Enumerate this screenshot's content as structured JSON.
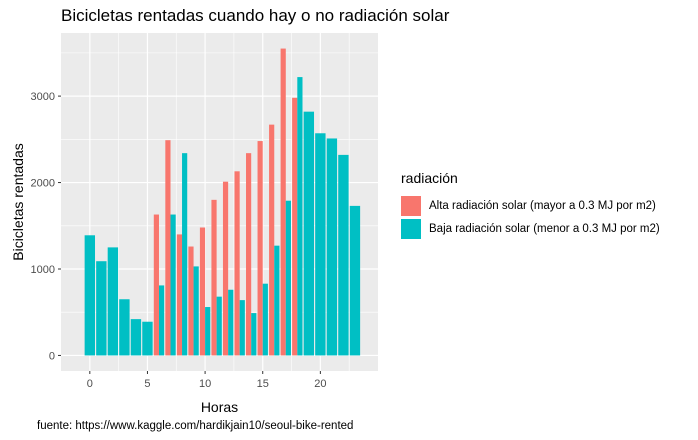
{
  "chart_data": {
    "type": "bar",
    "title": "Bicicletas rentadas cuando hay o no radiación solar",
    "xlabel": "Horas",
    "ylabel": "Bicicletas rentadas",
    "caption": "fuente: https://www.kaggle.com/hardikjain10/seoul-bike-rented",
    "xlim": [
      -2.5,
      25
    ],
    "ylim": [
      -180,
      3730
    ],
    "x_ticks": [
      0,
      5,
      10,
      15,
      20
    ],
    "y_ticks": [
      0,
      1000,
      2000,
      3000
    ],
    "grid": true,
    "legend": {
      "title": "radiación",
      "placement": "right"
    },
    "series": [
      {
        "name": "Alta radiación solar (mayor a 0.3 MJ por m2)",
        "color": "#F8766D",
        "points": [
          {
            "x": 6,
            "y": 1630
          },
          {
            "x": 7,
            "y": 2490
          },
          {
            "x": 8,
            "y": 1400
          },
          {
            "x": 9,
            "y": 1260
          },
          {
            "x": 10,
            "y": 1480
          },
          {
            "x": 11,
            "y": 1800
          },
          {
            "x": 12,
            "y": 2010
          },
          {
            "x": 13,
            "y": 2130
          },
          {
            "x": 14,
            "y": 2340
          },
          {
            "x": 15,
            "y": 2480
          },
          {
            "x": 16,
            "y": 2670
          },
          {
            "x": 17,
            "y": 3550
          },
          {
            "x": 18,
            "y": 2980
          }
        ]
      },
      {
        "name": "Baja radiación solar (menor a 0.3 MJ por m2)",
        "color": "#00BFC4",
        "points": [
          {
            "x": 0,
            "y": 1390
          },
          {
            "x": 1,
            "y": 1090
          },
          {
            "x": 2,
            "y": 1250
          },
          {
            "x": 3,
            "y": 650
          },
          {
            "x": 4,
            "y": 420
          },
          {
            "x": 5,
            "y": 390
          },
          {
            "x": 6,
            "y": 810
          },
          {
            "x": 7,
            "y": 1630
          },
          {
            "x": 8,
            "y": 2340
          },
          {
            "x": 9,
            "y": 1030
          },
          {
            "x": 10,
            "y": 560
          },
          {
            "x": 11,
            "y": 680
          },
          {
            "x": 12,
            "y": 760
          },
          {
            "x": 13,
            "y": 640
          },
          {
            "x": 14,
            "y": 490
          },
          {
            "x": 15,
            "y": 830
          },
          {
            "x": 16,
            "y": 1270
          },
          {
            "x": 17,
            "y": 1790
          },
          {
            "x": 18,
            "y": 3220
          },
          {
            "x": 19,
            "y": 2820
          },
          {
            "x": 20,
            "y": 2570
          },
          {
            "x": 21,
            "y": 2510
          },
          {
            "x": 22,
            "y": 2320
          },
          {
            "x": 23,
            "y": 1730
          }
        ]
      }
    ]
  }
}
